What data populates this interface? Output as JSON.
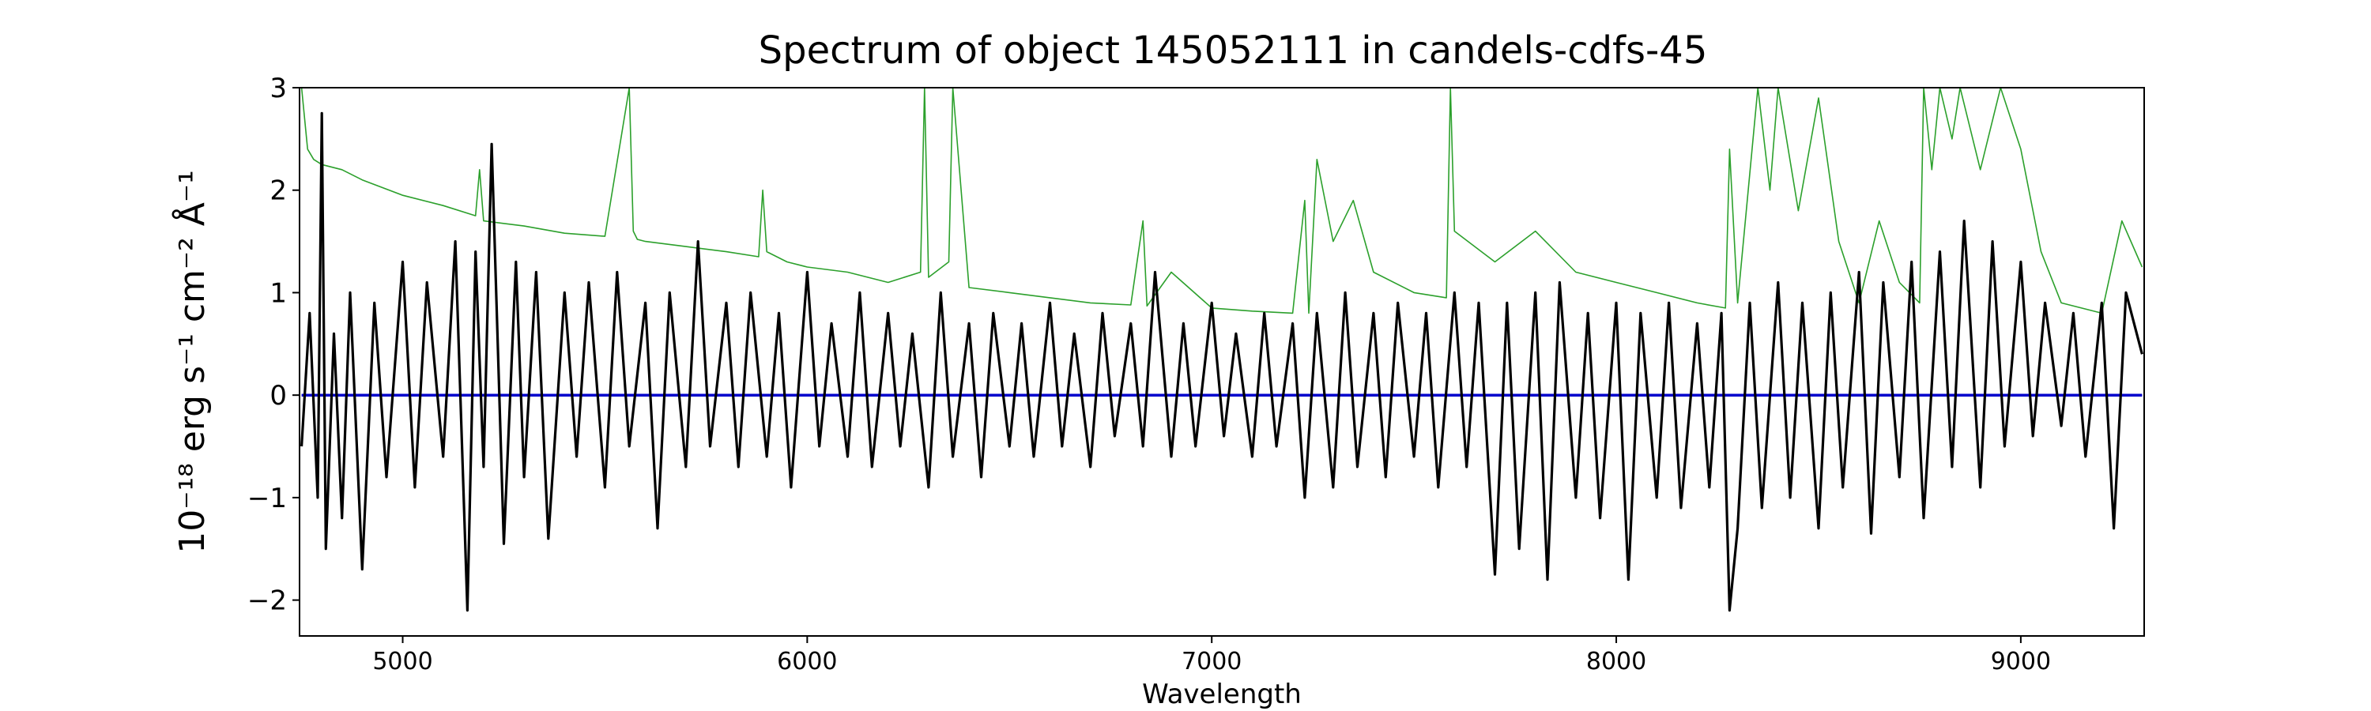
{
  "chart_data": {
    "type": "line",
    "title": "Spectrum of object 145052111 in candels-cdfs-45",
    "xlabel": "Wavelength",
    "ylabel": "10⁻¹⁸ erg s⁻¹ cm⁻² Å⁻¹",
    "xlim": [
      4745,
      9305
    ],
    "ylim": [
      -2.35,
      3.0
    ],
    "xticks": [
      5000,
      6000,
      7000,
      8000,
      9000
    ],
    "yticks": [
      -2,
      -1,
      0,
      1,
      2,
      3
    ],
    "xtick_labels": [
      "5000",
      "6000",
      "7000",
      "8000",
      "9000"
    ],
    "ytick_labels": [
      "−2",
      "−1",
      "0",
      "1",
      "2",
      "3"
    ],
    "grid": false,
    "series": [
      {
        "role": "noise",
        "color": "#2ca02c",
        "x": [
          4750,
          4765,
          4780,
          4800,
          4850,
          4900,
          5000,
          5100,
          5180,
          5190,
          5200,
          5300,
          5400,
          5500,
          5560,
          5570,
          5580,
          5600,
          5700,
          5800,
          5880,
          5890,
          5900,
          5950,
          6000,
          6100,
          6200,
          6280,
          6290,
          6300,
          6350,
          6360,
          6400,
          6500,
          6600,
          6700,
          6800,
          6830,
          6840,
          6900,
          7000,
          7100,
          7200,
          7230,
          7240,
          7260,
          7300,
          7350,
          7400,
          7500,
          7580,
          7590,
          7600,
          7700,
          7800,
          7900,
          8000,
          8100,
          8200,
          8270,
          8280,
          8300,
          8350,
          8380,
          8400,
          8450,
          8500,
          8550,
          8600,
          8650,
          8700,
          8750,
          8760,
          8780,
          8800,
          8830,
          8850,
          8900,
          8950,
          9000,
          9050,
          9100,
          9150,
          9200,
          9250,
          9300
        ],
        "values": [
          3.0,
          2.4,
          2.3,
          2.25,
          2.2,
          2.1,
          1.95,
          1.85,
          1.75,
          2.2,
          1.7,
          1.65,
          1.58,
          1.55,
          3.0,
          1.6,
          1.52,
          1.5,
          1.45,
          1.4,
          1.35,
          2.0,
          1.4,
          1.3,
          1.25,
          1.2,
          1.1,
          1.2,
          3.0,
          1.15,
          1.3,
          3.0,
          1.05,
          1.0,
          0.95,
          0.9,
          0.88,
          1.7,
          0.87,
          1.2,
          0.85,
          0.82,
          0.8,
          1.9,
          0.8,
          2.3,
          1.5,
          1.9,
          1.2,
          1.0,
          0.95,
          3.0,
          1.6,
          1.3,
          1.6,
          1.2,
          1.1,
          1.0,
          0.9,
          0.85,
          2.4,
          0.9,
          3.0,
          2.0,
          3.0,
          1.8,
          2.9,
          1.5,
          0.9,
          1.7,
          1.1,
          0.9,
          3.0,
          2.2,
          3.0,
          2.5,
          3.0,
          2.2,
          3.0,
          2.4,
          1.4,
          0.9,
          0.85,
          0.8,
          1.7,
          1.25
        ]
      },
      {
        "role": "zero-line",
        "color": "#0000cc",
        "x": [
          4750,
          9300
        ],
        "values": [
          0,
          0
        ]
      },
      {
        "role": "flux",
        "color": "#000000",
        "x": [
          4750,
          4770,
          4790,
          4800,
          4810,
          4830,
          4850,
          4870,
          4900,
          4930,
          4960,
          5000,
          5030,
          5060,
          5100,
          5130,
          5160,
          5180,
          5200,
          5220,
          5250,
          5280,
          5300,
          5330,
          5360,
          5400,
          5430,
          5460,
          5500,
          5530,
          5560,
          5600,
          5630,
          5660,
          5700,
          5730,
          5760,
          5800,
          5830,
          5860,
          5900,
          5930,
          5960,
          6000,
          6030,
          6060,
          6100,
          6130,
          6160,
          6200,
          6230,
          6260,
          6300,
          6330,
          6360,
          6400,
          6430,
          6460,
          6500,
          6530,
          6560,
          6600,
          6630,
          6660,
          6700,
          6730,
          6760,
          6800,
          6830,
          6860,
          6900,
          6930,
          6960,
          7000,
          7030,
          7060,
          7100,
          7130,
          7160,
          7200,
          7230,
          7260,
          7300,
          7330,
          7360,
          7400,
          7430,
          7460,
          7500,
          7530,
          7560,
          7600,
          7630,
          7660,
          7700,
          7730,
          7760,
          7800,
          7830,
          7860,
          7900,
          7930,
          7960,
          8000,
          8030,
          8060,
          8100,
          8130,
          8160,
          8200,
          8230,
          8260,
          8280,
          8300,
          8330,
          8360,
          8400,
          8430,
          8460,
          8500,
          8530,
          8560,
          8600,
          8630,
          8660,
          8700,
          8730,
          8760,
          8800,
          8830,
          8860,
          8900,
          8930,
          8960,
          9000,
          9030,
          9060,
          9100,
          9130,
          9160,
          9200,
          9230,
          9260,
          9300
        ],
        "values": [
          -0.5,
          0.8,
          -1.0,
          2.75,
          -1.5,
          0.6,
          -1.2,
          1.0,
          -1.7,
          0.9,
          -0.8,
          1.3,
          -0.9,
          1.1,
          -0.6,
          1.5,
          -2.1,
          1.4,
          -0.7,
          2.45,
          -1.45,
          1.3,
          -0.8,
          1.2,
          -1.4,
          1.0,
          -0.6,
          1.1,
          -0.9,
          1.2,
          -0.5,
          0.9,
          -1.3,
          1.0,
          -0.7,
          1.5,
          -0.5,
          0.9,
          -0.7,
          1.0,
          -0.6,
          0.8,
          -0.9,
          1.2,
          -0.5,
          0.7,
          -0.6,
          1.0,
          -0.7,
          0.8,
          -0.5,
          0.6,
          -0.9,
          1.0,
          -0.6,
          0.7,
          -0.8,
          0.8,
          -0.5,
          0.7,
          -0.6,
          0.9,
          -0.5,
          0.6,
          -0.7,
          0.8,
          -0.4,
          0.7,
          -0.5,
          1.2,
          -0.6,
          0.7,
          -0.5,
          0.9,
          -0.4,
          0.6,
          -0.6,
          0.8,
          -0.5,
          0.7,
          -1.0,
          0.8,
          -0.9,
          1.0,
          -0.7,
          0.8,
          -0.8,
          0.9,
          -0.6,
          0.8,
          -0.9,
          1.0,
          -0.7,
          0.9,
          -1.75,
          0.9,
          -1.5,
          1.0,
          -1.8,
          1.1,
          -1.0,
          0.8,
          -1.2,
          0.9,
          -1.8,
          0.8,
          -1.0,
          0.9,
          -1.1,
          0.7,
          -0.9,
          0.8,
          -2.1,
          -1.3,
          0.9,
          -1.1,
          1.1,
          -1.0,
          0.9,
          -1.3,
          1.0,
          -0.9,
          1.2,
          -1.35,
          1.1,
          -0.8,
          1.3,
          -1.2,
          1.4,
          -0.7,
          1.7,
          -0.9,
          1.5,
          -0.5,
          1.3,
          -0.4,
          0.9,
          -0.3,
          0.8,
          -0.6,
          0.9,
          -1.3,
          1.0,
          0.4
        ]
      }
    ]
  }
}
